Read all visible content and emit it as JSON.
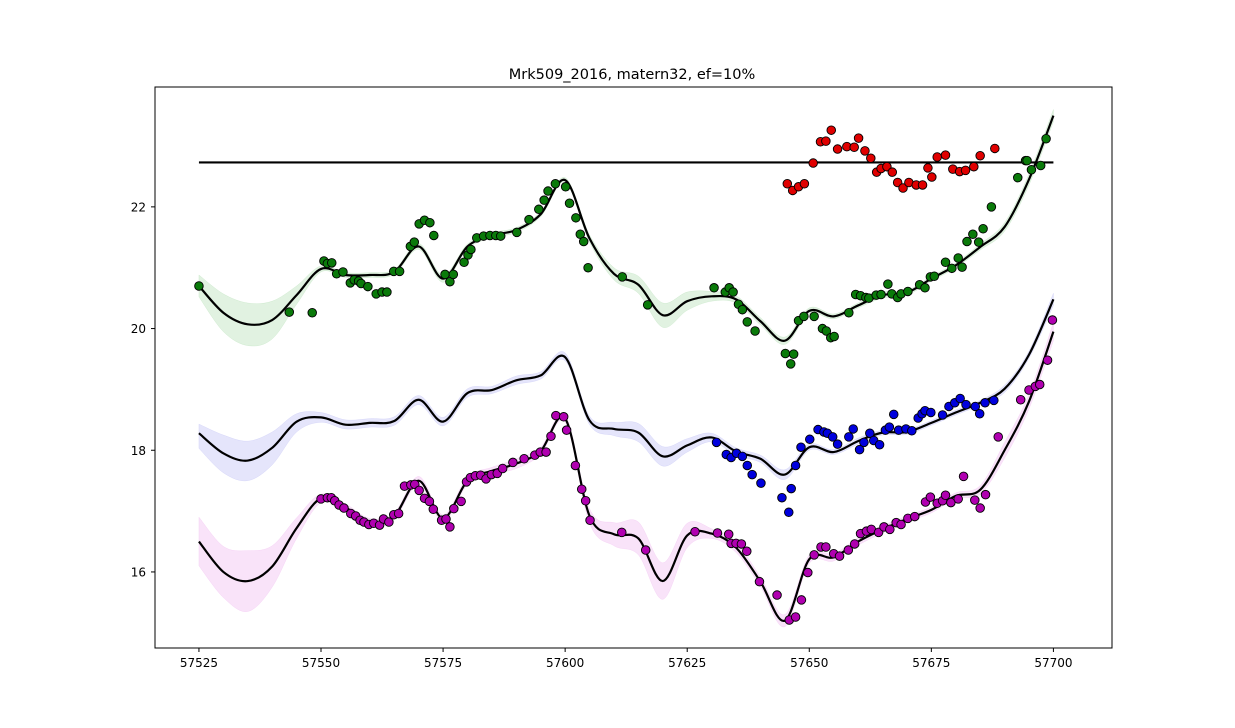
{
  "chart_data": {
    "type": "scatter",
    "title": "Mrk509_2016, matern32, ef=10%",
    "xlabel": "",
    "ylabel": "",
    "xlim": [
      57516,
      57712
    ],
    "ylim": [
      14.75,
      23.97
    ],
    "x_ticks": [
      57525,
      57550,
      57575,
      57600,
      57625,
      57650,
      57675,
      57700
    ],
    "y_ticks": [
      16,
      18,
      20,
      22
    ],
    "x_tick_labels": [
      "57525",
      "57550",
      "57575",
      "57600",
      "57625",
      "57650",
      "57675",
      "57700"
    ],
    "y_tick_labels": [
      "16",
      "18",
      "20",
      "22"
    ],
    "grid": false,
    "legend": false,
    "colors": {
      "red": "#e00000",
      "green": "#0a7a0a",
      "blue": "#0000dd",
      "magenta": "#b000b0",
      "model_line": "#000000",
      "green_band": "#9bd49b",
      "blue_band": "#a8a8f2",
      "magenta_band": "#eaa3ea"
    },
    "series": [
      {
        "color": "#e00000",
        "kind": "points",
        "x": [
          57645.5,
          57646.6,
          57647.8,
          57649.0,
          57650.8,
          57652.3,
          57653.4,
          57654.5,
          57655.8,
          57657.7,
          57659.2,
          57660.1,
          57661.4,
          57662.6,
          57663.8,
          57664.7,
          57665.9,
          57667.0,
          57668.1,
          57669.2,
          57670.4,
          57671.9,
          57673.2,
          57674.3,
          57675.1,
          57676.2,
          57677.9,
          57679.4,
          57680.8,
          57682.0,
          57683.7,
          57685.0,
          57688.0
        ],
        "y": [
          22.38,
          22.27,
          22.33,
          22.38,
          22.72,
          23.07,
          23.08,
          23.26,
          22.95,
          22.99,
          22.98,
          23.13,
          22.92,
          22.8,
          22.57,
          22.63,
          22.66,
          22.57,
          22.4,
          22.31,
          22.4,
          22.36,
          22.36,
          22.64,
          22.49,
          22.82,
          22.85,
          22.62,
          22.58,
          22.6,
          22.66,
          22.84,
          22.96
        ]
      },
      {
        "color": "#000000",
        "kind": "line",
        "x": [
          57525,
          57700
        ],
        "y": [
          22.73,
          22.73
        ]
      },
      {
        "color": "#0a7a0a",
        "kind": "points",
        "x": [
          57525.0,
          57543.5,
          57548.2,
          57550.6,
          57551.3,
          57552.2,
          57553.2,
          57554.5,
          57556.0,
          57556.8,
          57557.7,
          57558.2,
          57559.6,
          57561.3,
          57562.5,
          57563.5,
          57564.9,
          57566.1,
          57568.3,
          57569.1,
          57570.1,
          57571.2,
          57572.3,
          57573.1,
          57575.4,
          57576.4,
          57577.1,
          57579.3,
          57580.1,
          57580.7,
          57581.9,
          57583.3,
          57584.6,
          57585.8,
          57586.8,
          57590.1,
          57592.6,
          57594.6,
          57595.7,
          57596.5,
          57598.0,
          57600.1,
          57600.9,
          57602.2,
          57603.1,
          57603.8,
          57604.7,
          57611.7,
          57616.9,
          57630.5,
          57632.8,
          57633.6,
          57634.4,
          57635.5,
          57636.3,
          57637.3,
          57638.9,
          57645.1,
          57646.2,
          57646.8,
          57647.8,
          57648.9,
          57651.0,
          57652.7,
          57653.5,
          57654.4,
          57655.1,
          57658.1,
          57659.5,
          57660.5,
          57661.6,
          57662.2,
          57663.7,
          57664.7,
          57666.1,
          57666.9,
          57668.1,
          57668.8,
          57670.2,
          57672.6,
          57673.7,
          57674.8,
          57675.6,
          57677.9,
          57679.2,
          57680.5,
          57681.3,
          57682.3,
          57683.5,
          57684.7,
          57685.6,
          57687.3,
          57692.7,
          57694.3,
          57694.6,
          57695.5,
          57697.4,
          57698.5
        ],
        "y": [
          20.7,
          20.27,
          20.26,
          21.11,
          21.07,
          21.08,
          20.9,
          20.93,
          20.75,
          20.8,
          20.78,
          20.74,
          20.69,
          20.57,
          20.6,
          20.6,
          20.94,
          20.94,
          21.35,
          21.42,
          21.72,
          21.78,
          21.74,
          21.53,
          20.89,
          20.77,
          20.89,
          21.09,
          21.21,
          21.3,
          21.49,
          21.52,
          21.53,
          21.53,
          21.52,
          21.58,
          21.79,
          21.96,
          22.11,
          22.26,
          22.38,
          22.33,
          22.06,
          21.82,
          21.55,
          21.43,
          21.0,
          20.85,
          20.39,
          20.67,
          20.6,
          20.67,
          20.6,
          20.4,
          20.31,
          20.11,
          19.96,
          19.59,
          19.42,
          19.58,
          20.13,
          20.2,
          20.2,
          20.0,
          19.96,
          19.85,
          19.87,
          20.26,
          20.56,
          20.54,
          20.51,
          20.5,
          20.55,
          20.56,
          20.73,
          20.57,
          20.51,
          20.57,
          20.61,
          20.72,
          20.67,
          20.85,
          20.86,
          21.09,
          20.99,
          21.16,
          21.01,
          21.43,
          21.55,
          21.42,
          21.64,
          22.0,
          22.48,
          22.76,
          22.76,
          22.61,
          22.68,
          23.12
        ]
      },
      {
        "color": "#000000",
        "kind": "model",
        "band_color": "#9bd49b",
        "x": [
          57525,
          57530,
          57535,
          57540,
          57545,
          57550,
          57555,
          57560,
          57565,
          57570,
          57575,
          57580,
          57585,
          57590,
          57595,
          57600,
          57605,
          57610,
          57615,
          57620,
          57625,
          57630,
          57635,
          57640,
          57645,
          57650,
          57655,
          57660,
          57665,
          57670,
          57675,
          57680,
          57685,
          57690,
          57695,
          57700
        ],
        "y": [
          20.7,
          20.26,
          20.07,
          20.14,
          20.55,
          20.98,
          20.88,
          20.88,
          20.93,
          21.35,
          20.82,
          21.35,
          21.53,
          21.62,
          21.88,
          22.44,
          21.48,
          20.9,
          20.72,
          20.22,
          20.45,
          20.53,
          20.48,
          20.12,
          19.8,
          20.29,
          20.2,
          20.38,
          20.55,
          20.59,
          20.82,
          21.04,
          21.34,
          21.67,
          22.45,
          23.5
        ],
        "lower": [
          20.52,
          19.95,
          19.72,
          19.83,
          20.4,
          20.93,
          20.84,
          20.84,
          20.89,
          21.3,
          20.76,
          21.31,
          21.49,
          21.58,
          21.84,
          22.4,
          21.42,
          20.8,
          20.58,
          20.02,
          20.3,
          20.45,
          20.42,
          20.06,
          19.74,
          20.24,
          20.16,
          20.34,
          20.5,
          20.55,
          20.78,
          21.0,
          21.29,
          21.6,
          22.36,
          23.4
        ],
        "upper": [
          20.88,
          20.57,
          20.42,
          20.45,
          20.7,
          21.03,
          20.92,
          20.92,
          20.97,
          21.4,
          20.88,
          21.39,
          21.57,
          21.66,
          21.92,
          22.48,
          21.54,
          21.0,
          20.86,
          20.42,
          20.6,
          20.61,
          20.54,
          20.18,
          19.86,
          20.34,
          20.24,
          20.42,
          20.6,
          20.63,
          20.86,
          21.08,
          21.39,
          21.74,
          22.54,
          23.6
        ]
      },
      {
        "color": "#0000dd",
        "kind": "points",
        "x": [
          57631.0,
          57633.0,
          57634.0,
          57635.1,
          57636.3,
          57637.3,
          57638.3,
          57640.1,
          57644.4,
          57645.8,
          57646.3,
          57647.2,
          57648.3,
          57650.1,
          57651.8,
          57653.0,
          57653.7,
          57654.8,
          57655.8,
          57658.1,
          57659.0,
          57660.3,
          57661.2,
          57662.4,
          57663.2,
          57664.4,
          57665.6,
          57666.4,
          57667.3,
          57668.3,
          57669.8,
          57671.0,
          57672.3,
          57673.1,
          57673.7,
          57674.9,
          57677.3,
          57678.6,
          57679.8,
          57680.9,
          57682.1,
          57684.0,
          57684.9,
          57686.0,
          57687.8
        ],
        "y": [
          18.13,
          17.93,
          17.88,
          17.95,
          17.9,
          17.75,
          17.6,
          17.46,
          17.22,
          16.98,
          17.37,
          17.75,
          18.05,
          18.18,
          18.34,
          18.3,
          18.28,
          18.22,
          18.1,
          18.22,
          18.35,
          18.01,
          18.13,
          18.28,
          18.16,
          18.09,
          18.33,
          18.38,
          18.59,
          18.33,
          18.35,
          18.32,
          18.53,
          18.6,
          18.65,
          18.62,
          18.58,
          18.72,
          18.78,
          18.85,
          18.75,
          18.72,
          18.6,
          18.78,
          18.82
        ]
      },
      {
        "color": "#000000",
        "kind": "model",
        "band_color": "#a8a8f2",
        "x": [
          57525,
          57530,
          57535,
          57540,
          57545,
          57550,
          57555,
          57560,
          57565,
          57570,
          57575,
          57580,
          57585,
          57590,
          57595,
          57600,
          57605,
          57610,
          57615,
          57620,
          57625,
          57630,
          57635,
          57640,
          57645,
          57650,
          57655,
          57660,
          57665,
          57670,
          57675,
          57680,
          57685,
          57690,
          57695,
          57700
        ],
        "y": [
          18.28,
          17.95,
          17.83,
          18.04,
          18.47,
          18.54,
          18.42,
          18.45,
          18.48,
          18.83,
          18.47,
          18.94,
          18.99,
          19.15,
          19.23,
          19.53,
          18.49,
          18.35,
          18.29,
          17.9,
          18.08,
          18.21,
          17.98,
          17.86,
          17.6,
          18.05,
          17.97,
          18.15,
          18.29,
          18.3,
          18.45,
          18.62,
          18.78,
          19.01,
          19.57,
          20.48
        ],
        "lower": [
          18.03,
          17.63,
          17.5,
          17.76,
          18.3,
          18.46,
          18.35,
          18.38,
          18.41,
          18.75,
          18.4,
          18.87,
          18.93,
          19.08,
          19.17,
          19.47,
          18.42,
          18.24,
          18.14,
          17.74,
          17.97,
          18.14,
          17.92,
          17.8,
          17.52,
          18.0,
          17.93,
          18.1,
          18.25,
          18.26,
          18.41,
          18.58,
          18.74,
          18.95,
          19.51,
          20.38
        ],
        "upper": [
          18.43,
          18.25,
          18.15,
          18.3,
          18.6,
          18.62,
          18.5,
          18.52,
          18.55,
          18.9,
          18.54,
          19.01,
          19.05,
          19.22,
          19.29,
          19.6,
          18.56,
          18.46,
          18.44,
          18.06,
          18.19,
          18.28,
          18.04,
          17.92,
          17.68,
          18.1,
          18.01,
          18.2,
          18.33,
          18.34,
          18.49,
          18.66,
          18.82,
          19.07,
          19.63,
          20.58
        ]
      },
      {
        "color": "#b000b0",
        "kind": "points",
        "x": [
          57550.0,
          57551.3,
          57552.1,
          57552.8,
          57553.7,
          57554.7,
          57556.1,
          57557.1,
          57558.0,
          57558.8,
          57559.8,
          57560.8,
          57562.0,
          57562.8,
          57563.9,
          57564.9,
          57565.9,
          57567.1,
          57568.4,
          57569.2,
          57570.1,
          57571.2,
          57572.2,
          57573.0,
          57574.7,
          57575.6,
          57576.4,
          57577.2,
          57578.7,
          57579.8,
          57580.6,
          57581.6,
          57582.7,
          57583.8,
          57584.9,
          57586.1,
          57587.2,
          57589.3,
          57591.6,
          57593.8,
          57594.9,
          57596.1,
          57597.1,
          57598.1,
          57599.7,
          57600.3,
          57602.1,
          57603.4,
          57604.2,
          57605.1,
          57611.6,
          57616.5,
          57626.6,
          57631.2,
          57633.5,
          57634.0,
          57635.0,
          57636.1,
          57637.2,
          57639.8,
          57643.4,
          57645.9,
          57647.2,
          57648.4,
          57649.7,
          57651.0,
          57652.4,
          57653.4,
          57655.0,
          57656.2,
          57658.0,
          57659.3,
          57660.5,
          57661.7,
          57662.7,
          57664.2,
          57665.3,
          57666.5,
          57667.8,
          57668.8,
          57670.2,
          57671.6,
          57673.8,
          57674.8,
          57676.2,
          57677.3,
          57677.9,
          57679.0,
          57680.5,
          57681.6,
          57683.9,
          57685.0,
          57686.1,
          57688.7,
          57693.3,
          57695.0,
          57696.3,
          57697.2,
          57698.8,
          57699.8
        ],
        "y": [
          17.2,
          17.22,
          17.22,
          17.17,
          17.1,
          17.05,
          16.96,
          16.92,
          16.85,
          16.82,
          16.78,
          16.8,
          16.77,
          16.87,
          16.82,
          16.94,
          16.96,
          17.41,
          17.43,
          17.44,
          17.34,
          17.21,
          17.16,
          17.03,
          16.85,
          16.87,
          16.74,
          17.04,
          17.16,
          17.48,
          17.55,
          17.58,
          17.59,
          17.53,
          17.6,
          17.62,
          17.7,
          17.8,
          17.86,
          17.92,
          17.97,
          17.97,
          18.23,
          18.57,
          18.55,
          18.33,
          17.75,
          17.36,
          17.17,
          16.85,
          16.65,
          16.36,
          16.66,
          16.64,
          16.62,
          16.47,
          16.47,
          16.46,
          16.34,
          15.84,
          15.62,
          15.21,
          15.26,
          15.54,
          15.99,
          16.28,
          16.41,
          16.41,
          16.3,
          16.26,
          16.36,
          16.46,
          16.63,
          16.67,
          16.7,
          16.65,
          16.74,
          16.7,
          16.81,
          16.78,
          16.88,
          16.91,
          17.15,
          17.23,
          17.13,
          17.17,
          17.26,
          17.14,
          17.2,
          17.57,
          17.18,
          17.05,
          17.27,
          18.22,
          18.83,
          18.99,
          19.05,
          19.08,
          19.48,
          20.14
        ]
      },
      {
        "color": "#000000",
        "kind": "model",
        "band_color": "#eaa3ea",
        "x": [
          57525,
          57530,
          57535,
          57540,
          57545,
          57550,
          57555,
          57560,
          57565,
          57570,
          57575,
          57580,
          57585,
          57590,
          57595,
          57600,
          57605,
          57610,
          57615,
          57620,
          57625,
          57630,
          57635,
          57640,
          57645,
          57650,
          57655,
          57660,
          57665,
          57670,
          57675,
          57680,
          57685,
          57690,
          57695,
          57700
        ],
        "y": [
          16.5,
          16.0,
          15.85,
          16.09,
          16.72,
          17.21,
          17.06,
          16.82,
          16.92,
          17.5,
          16.88,
          17.5,
          17.66,
          17.78,
          17.99,
          18.52,
          16.92,
          16.62,
          16.55,
          15.85,
          16.6,
          16.63,
          16.4,
          15.84,
          15.2,
          16.21,
          16.24,
          16.5,
          16.7,
          16.87,
          17.02,
          17.25,
          17.35,
          18.0,
          18.8,
          19.95
        ],
        "lower": [
          16.1,
          15.58,
          15.35,
          15.75,
          16.55,
          17.14,
          17.0,
          16.76,
          16.87,
          17.43,
          16.82,
          17.44,
          17.6,
          17.7,
          17.93,
          18.46,
          16.8,
          16.43,
          16.28,
          15.55,
          16.4,
          16.55,
          16.32,
          15.76,
          15.1,
          16.14,
          16.18,
          16.44,
          16.64,
          16.82,
          16.97,
          17.2,
          17.28,
          17.87,
          18.68,
          19.8
        ],
        "upper": [
          16.9,
          16.42,
          16.35,
          16.43,
          16.89,
          17.28,
          17.12,
          16.88,
          16.97,
          17.57,
          16.94,
          17.56,
          17.72,
          17.86,
          18.05,
          18.58,
          17.04,
          16.81,
          16.82,
          16.15,
          16.8,
          16.71,
          16.48,
          15.92,
          15.3,
          16.28,
          16.3,
          16.56,
          16.76,
          16.92,
          17.07,
          17.3,
          17.42,
          18.13,
          18.92,
          20.1
        ]
      }
    ]
  }
}
